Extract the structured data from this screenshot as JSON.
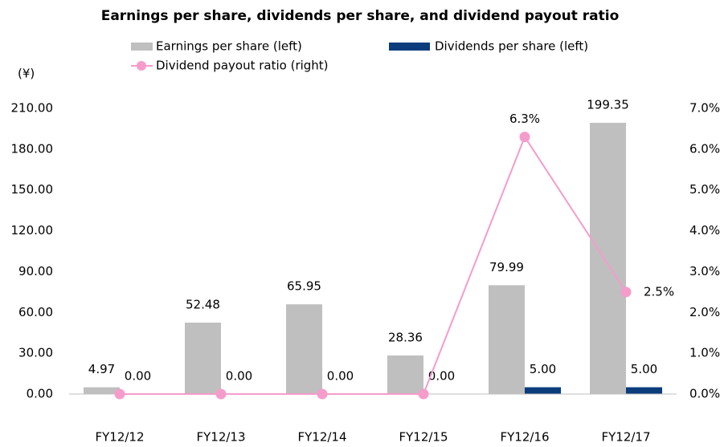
{
  "chart_data": {
    "type": "bar",
    "title": "Earnings per share, dividends per share, and dividend payout ratio",
    "y_axis_label": "(¥)",
    "categories": [
      "FY12/12",
      "FY12/13",
      "FY12/14",
      "FY12/15",
      "FY12/16",
      "FY12/17"
    ],
    "series": [
      {
        "name": "Earnings per share (left)",
        "type": "bar",
        "color": "#bfbfbf",
        "values": [
          4.97,
          52.48,
          65.95,
          28.36,
          79.99,
          199.35
        ],
        "value_labels": [
          "4.97",
          "52.48",
          "65.95",
          "28.36",
          "79.99",
          "199.35"
        ]
      },
      {
        "name": "Dividends per share (left)",
        "type": "bar",
        "color": "#0b3c7c",
        "values": [
          0,
          0,
          0,
          0,
          5,
          5
        ],
        "value_labels": [
          "0.00",
          "0.00",
          "0.00",
          "0.00",
          "5.00",
          "5.00"
        ]
      },
      {
        "name": "Dividend payout ratio (right)",
        "type": "line",
        "axis": "y2",
        "color": "#f59ccb",
        "values": [
          0,
          0,
          0,
          0,
          6.3,
          2.5
        ],
        "value_labels": [
          null,
          null,
          null,
          null,
          "6.3%",
          "2.5%"
        ]
      }
    ],
    "ylim": [
      0,
      210
    ],
    "yticks": [
      {
        "value": 0,
        "label": "0.00"
      },
      {
        "value": 30,
        "label": "30.00"
      },
      {
        "value": 60,
        "label": "60.00"
      },
      {
        "value": 90,
        "label": "90.00"
      },
      {
        "value": 120,
        "label": "120.00"
      },
      {
        "value": 150,
        "label": "150.00"
      },
      {
        "value": 180,
        "label": "180.00"
      },
      {
        "value": 210,
        "label": "210.00"
      }
    ],
    "y2lim": [
      0,
      7
    ],
    "y2ticks": [
      {
        "value": 0,
        "label": "0.0%"
      },
      {
        "value": 1,
        "label": "1.0%"
      },
      {
        "value": 2,
        "label": "2.0%"
      },
      {
        "value": 3,
        "label": "3.0%"
      },
      {
        "value": 4,
        "label": "4.0%"
      },
      {
        "value": 5,
        "label": "5.0%"
      },
      {
        "value": 6,
        "label": "6.0%"
      },
      {
        "value": 7,
        "label": "7.0%"
      }
    ],
    "grid": false
  }
}
